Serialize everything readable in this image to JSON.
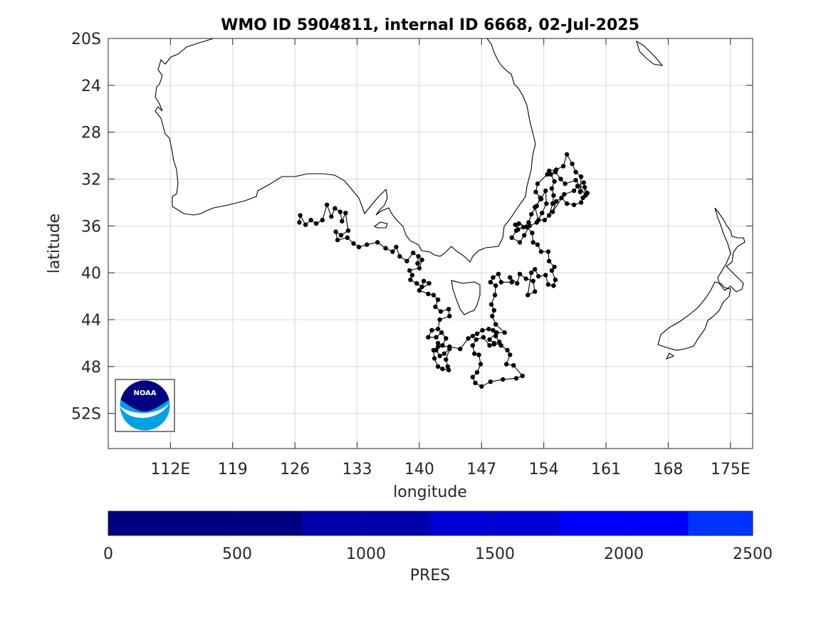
{
  "title": "WMO ID 5904811, internal ID 6668, 02-Jul-2025",
  "map": {
    "lon_range": [
      105,
      177.5
    ],
    "lat_range": [
      -55,
      -20
    ],
    "xlabel": "longitude",
    "ylabel": "latitude",
    "grid": true,
    "lon_ticks": [
      {
        "value": 112,
        "label": "112E"
      },
      {
        "value": 119,
        "label": "119"
      },
      {
        "value": 126,
        "label": "126"
      },
      {
        "value": 133,
        "label": "133"
      },
      {
        "value": 140,
        "label": "140"
      },
      {
        "value": 147,
        "label": "147"
      },
      {
        "value": 154,
        "label": "154"
      },
      {
        "value": 161,
        "label": "161"
      },
      {
        "value": 168,
        "label": "168"
      },
      {
        "value": 175,
        "label": "175E"
      }
    ],
    "lat_ticks": [
      {
        "value": -20,
        "label": "20S"
      },
      {
        "value": -24,
        "label": "24"
      },
      {
        "value": -28,
        "label": "28"
      },
      {
        "value": -32,
        "label": "32"
      },
      {
        "value": -36,
        "label": "36"
      },
      {
        "value": -40,
        "label": "40"
      },
      {
        "value": -44,
        "label": "44"
      },
      {
        "value": -48,
        "label": "48"
      },
      {
        "value": -52,
        "label": "52S"
      }
    ]
  },
  "logo": {
    "name": "noaa-logo",
    "text": "NOAA"
  },
  "colorbar": {
    "label": "PRES",
    "range": [
      0,
      2500
    ],
    "ticks": [
      0,
      500,
      1000,
      1500,
      2000,
      2500
    ],
    "segments": [
      {
        "from": 0,
        "to": 750,
        "color": "#000080"
      },
      {
        "from": 750,
        "to": 1250,
        "color": "#0000aa"
      },
      {
        "from": 1250,
        "to": 1750,
        "color": "#0000d4"
      },
      {
        "from": 1750,
        "to": 2250,
        "color": "#0000ff"
      },
      {
        "from": 2250,
        "to": 2500,
        "color": "#0033ff"
      }
    ]
  },
  "track": [
    [
      126.5,
      -35.7
    ],
    [
      126.6,
      -35.1
    ],
    [
      127.2,
      -35.9
    ],
    [
      127.8,
      -35.5
    ],
    [
      128.4,
      -35.8
    ],
    [
      129.1,
      -35.5
    ],
    [
      129.6,
      -34.2
    ],
    [
      130.1,
      -35.2
    ],
    [
      130.5,
      -34.5
    ],
    [
      131.1,
      -34.8
    ],
    [
      131.3,
      -35.6
    ],
    [
      131.7,
      -34.9
    ],
    [
      132.0,
      -36.4
    ],
    [
      131.2,
      -36.8
    ],
    [
      130.6,
      -36.5
    ],
    [
      130.8,
      -37.2
    ],
    [
      131.9,
      -37.0
    ],
    [
      132.6,
      -37.5
    ],
    [
      133.2,
      -37.8
    ],
    [
      134.1,
      -37.6
    ],
    [
      135.3,
      -37.4
    ],
    [
      136.2,
      -37.9
    ],
    [
      137.0,
      -38.2
    ],
    [
      137.4,
      -37.8
    ],
    [
      137.8,
      -38.6
    ],
    [
      138.6,
      -39.0
    ],
    [
      139.3,
      -38.3
    ],
    [
      139.9,
      -38.6
    ],
    [
      139.8,
      -39.2
    ],
    [
      140.3,
      -38.9
    ],
    [
      140.0,
      -39.6
    ],
    [
      138.9,
      -39.8
    ],
    [
      139.2,
      -40.2
    ],
    [
      139.0,
      -40.6
    ],
    [
      139.7,
      -40.9
    ],
    [
      140.3,
      -41.2
    ],
    [
      140.5,
      -40.7
    ],
    [
      141.1,
      -40.9
    ],
    [
      140.0,
      -41.5
    ],
    [
      141.0,
      -41.8
    ],
    [
      141.6,
      -41.9
    ],
    [
      142.1,
      -42.3
    ],
    [
      141.8,
      -42.9
    ],
    [
      142.4,
      -43.3
    ],
    [
      143.3,
      -43.1
    ],
    [
      143.4,
      -43.7
    ],
    [
      142.3,
      -44.0
    ],
    [
      142.1,
      -44.8
    ],
    [
      141.4,
      -44.9
    ],
    [
      141.0,
      -45.5
    ],
    [
      141.9,
      -45.5
    ],
    [
      142.5,
      -45.1
    ],
    [
      143.0,
      -45.6
    ],
    [
      142.6,
      -46.2
    ],
    [
      142.1,
      -46.0
    ],
    [
      141.9,
      -46.6
    ],
    [
      142.3,
      -47.1
    ],
    [
      142.8,
      -46.9
    ],
    [
      143.4,
      -46.5
    ],
    [
      143.0,
      -47.4
    ],
    [
      143.2,
      -48.0
    ],
    [
      143.3,
      -48.3
    ],
    [
      142.6,
      -48.2
    ],
    [
      142.1,
      -48.0
    ],
    [
      141.7,
      -47.3
    ],
    [
      141.6,
      -46.6
    ],
    [
      142.1,
      -46.3
    ],
    [
      143.4,
      -46.3
    ],
    [
      144.6,
      -46.5
    ],
    [
      145.5,
      -45.6
    ],
    [
      146.0,
      -45.4
    ],
    [
      146.5,
      -45.2
    ],
    [
      147.1,
      -44.9
    ],
    [
      147.8,
      -44.8
    ],
    [
      148.3,
      -44.9
    ],
    [
      148.6,
      -45.4
    ],
    [
      149.0,
      -45.9
    ],
    [
      148.4,
      -46.1
    ],
    [
      147.9,
      -46.2
    ],
    [
      147.2,
      -45.5
    ],
    [
      146.4,
      -45.7
    ],
    [
      146.0,
      -46.2
    ],
    [
      146.2,
      -46.9
    ],
    [
      146.7,
      -47.0
    ],
    [
      146.9,
      -47.8
    ],
    [
      146.5,
      -48.5
    ],
    [
      146.0,
      -48.9
    ],
    [
      146.3,
      -49.4
    ],
    [
      147.0,
      -49.7
    ],
    [
      148.0,
      -49.3
    ],
    [
      149.4,
      -49.1
    ],
    [
      150.9,
      -49.0
    ],
    [
      151.6,
      -48.8
    ],
    [
      150.6,
      -47.9
    ],
    [
      149.8,
      -47.8
    ],
    [
      150.2,
      -47.0
    ],
    [
      149.9,
      -46.6
    ],
    [
      149.2,
      -46.2
    ],
    [
      148.4,
      -46.0
    ],
    [
      147.9,
      -45.7
    ],
    [
      148.7,
      -45.1
    ],
    [
      149.6,
      -45.1
    ],
    [
      148.6,
      -44.4
    ],
    [
      148.2,
      -43.7
    ],
    [
      148.4,
      -43.2
    ],
    [
      148.1,
      -42.7
    ],
    [
      148.5,
      -41.9
    ],
    [
      148.6,
      -41.1
    ],
    [
      148.0,
      -40.8
    ],
    [
      148.3,
      -40.4
    ],
    [
      148.9,
      -40.1
    ],
    [
      149.2,
      -40.8
    ],
    [
      150.4,
      -40.8
    ],
    [
      150.2,
      -40.4
    ],
    [
      151.0,
      -40.9
    ],
    [
      151.3,
      -40.1
    ],
    [
      152.0,
      -40.5
    ],
    [
      152.8,
      -40.7
    ],
    [
      153.0,
      -41.6
    ],
    [
      152.2,
      -41.9
    ],
    [
      152.6,
      -40.0
    ],
    [
      153.0,
      -39.7
    ],
    [
      153.4,
      -40.3
    ],
    [
      154.2,
      -40.2
    ],
    [
      154.5,
      -41.0
    ],
    [
      155.1,
      -41.1
    ],
    [
      155.3,
      -40.6
    ],
    [
      154.9,
      -39.8
    ],
    [
      155.2,
      -39.5
    ],
    [
      154.6,
      -39.0
    ],
    [
      154.5,
      -38.2
    ],
    [
      153.7,
      -38.2
    ],
    [
      153.3,
      -37.6
    ],
    [
      152.8,
      -37.4
    ],
    [
      152.7,
      -36.6
    ],
    [
      152.1,
      -36.1
    ],
    [
      151.2,
      -35.8
    ],
    [
      150.9,
      -36.4
    ],
    [
      150.4,
      -37.0
    ],
    [
      151.3,
      -37.4
    ],
    [
      151.8,
      -36.8
    ],
    [
      152.4,
      -36.0
    ],
    [
      153.2,
      -35.7
    ],
    [
      153.8,
      -34.9
    ],
    [
      154.3,
      -34.1
    ],
    [
      154.2,
      -33.0
    ],
    [
      153.7,
      -33.7
    ],
    [
      153.0,
      -34.4
    ],
    [
      153.4,
      -35.5
    ],
    [
      154.1,
      -35.5
    ],
    [
      154.6,
      -35.1
    ],
    [
      155.0,
      -34.1
    ],
    [
      155.1,
      -33.4
    ],
    [
      154.9,
      -32.8
    ],
    [
      155.2,
      -32.2
    ],
    [
      154.8,
      -31.6
    ],
    [
      154.6,
      -31.3
    ],
    [
      155.4,
      -31.2
    ],
    [
      156.2,
      -30.9
    ],
    [
      156.6,
      -29.9
    ],
    [
      157.2,
      -30.7
    ],
    [
      157.6,
      -31.4
    ],
    [
      158.2,
      -31.8
    ],
    [
      158.1,
      -33.1
    ],
    [
      157.8,
      -32.6
    ],
    [
      158.6,
      -32.7
    ],
    [
      158.9,
      -33.2
    ],
    [
      158.4,
      -33.6
    ],
    [
      158.2,
      -34.0
    ],
    [
      157.4,
      -34.2
    ],
    [
      156.6,
      -34.1
    ],
    [
      156.0,
      -33.6
    ],
    [
      155.4,
      -33.9
    ],
    [
      155.0,
      -34.8
    ],
    [
      156.3,
      -33.3
    ],
    [
      157.4,
      -33.0
    ],
    [
      157.8,
      -32.6
    ],
    [
      158.5,
      -32.3
    ],
    [
      158.7,
      -33.4
    ],
    [
      157.6,
      -32.1
    ],
    [
      156.4,
      -32.4
    ],
    [
      155.9,
      -32.0
    ],
    [
      155.3,
      -31.4
    ],
    [
      154.4,
      -31.6
    ],
    [
      153.3,
      -32.4
    ],
    [
      153.1,
      -33.1
    ],
    [
      153.6,
      -33.6
    ],
    [
      153.2,
      -34.3
    ],
    [
      152.6,
      -35.0
    ],
    [
      152.3,
      -35.7
    ],
    [
      151.7,
      -36.1
    ],
    [
      151.1,
      -36.3
    ],
    [
      150.8,
      -35.9
    ]
  ]
}
